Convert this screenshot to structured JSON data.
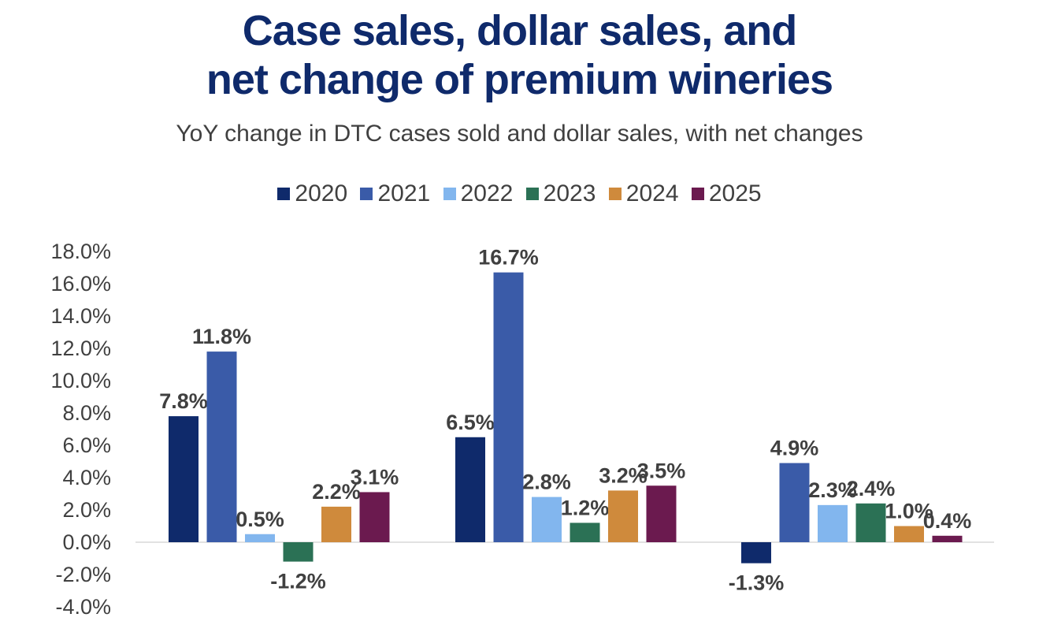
{
  "title_lines": [
    "Case sales, dollar sales, and",
    "net change of premium wineries"
  ],
  "subtitle": "YoY change in DTC cases sold and dollar sales, with net changes",
  "chart_data": {
    "type": "bar",
    "title": "Case sales, dollar sales, and net change of premium wineries",
    "subtitle": "YoY change in DTC cases sold and dollar sales, with net changes",
    "categories": [
      "",
      "",
      ""
    ],
    "series": [
      {
        "name": "2020",
        "color": "#0f2a6b",
        "values": [
          7.8,
          6.5,
          -1.3
        ]
      },
      {
        "name": "2021",
        "color": "#3a5ba8",
        "values": [
          11.8,
          16.7,
          4.9
        ]
      },
      {
        "name": "2022",
        "color": "#82b6ee",
        "values": [
          0.5,
          2.8,
          2.3
        ]
      },
      {
        "name": "2023",
        "color": "#2b7155",
        "values": [
          -1.2,
          1.2,
          2.4
        ]
      },
      {
        "name": "2024",
        "color": "#cf8a3c",
        "values": [
          2.2,
          3.2,
          1.0
        ]
      },
      {
        "name": "2025",
        "color": "#6b1a4f",
        "values": [
          3.1,
          3.5,
          0.4
        ]
      }
    ],
    "data_labels": [
      [
        "7.8%",
        "6.5%",
        "-1.3%"
      ],
      [
        "11.8%",
        "16.7%",
        "4.9%"
      ],
      [
        "0.5%",
        "2.8%",
        "2.3%"
      ],
      [
        "-1.2%",
        "1.2%",
        "2.4%"
      ],
      [
        "2.2%",
        "3.2%",
        "1.0%"
      ],
      [
        "3.1%",
        "3.5%",
        "0.4%"
      ]
    ],
    "y_ticks": [
      18,
      16,
      14,
      12,
      10,
      8,
      6,
      4,
      2,
      0,
      -2,
      -4
    ],
    "y_tick_labels": [
      "18.0%",
      "16.0%",
      "14.0%",
      "12.0%",
      "10.0%",
      "8.0%",
      "6.0%",
      "4.0%",
      "2.0%",
      "0.0%",
      "-2.0%",
      "-4.0%"
    ],
    "ylim": [
      -4,
      18
    ],
    "grid": false,
    "legend_position": "top"
  }
}
